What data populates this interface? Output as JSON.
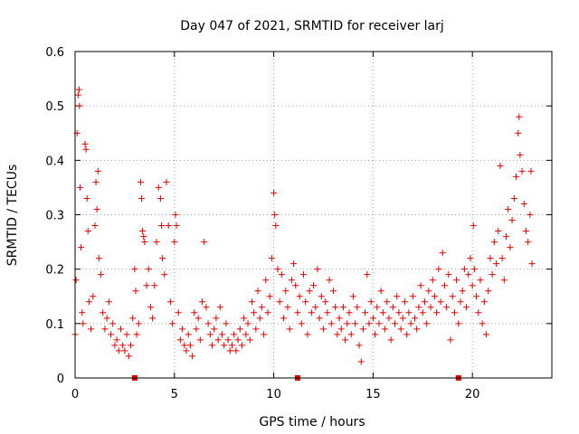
{
  "chart_data": {
    "type": "scatter",
    "title": "Day 047 of 2021, SRMTID for receiver larj",
    "xlabel": "GPS time / hours",
    "ylabel": "SRMTID / TECUs",
    "xlim": [
      0,
      24
    ],
    "ylim": [
      0,
      0.6
    ],
    "xticks": [
      0,
      5,
      10,
      15,
      20
    ],
    "xtick_labels": [
      "0",
      "5",
      "10",
      "15",
      "20"
    ],
    "yticks": [
      0,
      0.1,
      0.2,
      0.3,
      0.4,
      0.5,
      0.6
    ],
    "ytick_labels": [
      "0",
      "0.1",
      "0.2",
      "0.3",
      "0.4",
      "0.5",
      "0.6"
    ],
    "grid": true,
    "marker": "plus",
    "color": "#e00000",
    "axis_marks_x": [
      3.0,
      11.2,
      19.3
    ],
    "series": [
      {
        "name": "SRMTID",
        "points": [
          [
            0.0,
            0.08
          ],
          [
            0.05,
            0.18
          ],
          [
            0.1,
            0.45
          ],
          [
            0.15,
            0.52
          ],
          [
            0.2,
            0.53
          ],
          [
            0.22,
            0.5
          ],
          [
            0.25,
            0.35
          ],
          [
            0.3,
            0.24
          ],
          [
            0.35,
            0.12
          ],
          [
            0.4,
            0.1
          ],
          [
            0.5,
            0.43
          ],
          [
            0.55,
            0.42
          ],
          [
            0.6,
            0.33
          ],
          [
            0.65,
            0.27
          ],
          [
            0.7,
            0.14
          ],
          [
            0.8,
            0.09
          ],
          [
            0.9,
            0.15
          ],
          [
            1.0,
            0.28
          ],
          [
            1.05,
            0.36
          ],
          [
            1.1,
            0.31
          ],
          [
            1.15,
            0.38
          ],
          [
            1.2,
            0.22
          ],
          [
            1.3,
            0.19
          ],
          [
            1.4,
            0.12
          ],
          [
            1.5,
            0.09
          ],
          [
            1.6,
            0.11
          ],
          [
            1.7,
            0.14
          ],
          [
            1.8,
            0.08
          ],
          [
            1.9,
            0.1
          ],
          [
            2.0,
            0.06
          ],
          [
            2.1,
            0.07
          ],
          [
            2.2,
            0.05
          ],
          [
            2.3,
            0.09
          ],
          [
            2.4,
            0.06
          ],
          [
            2.5,
            0.05
          ],
          [
            2.6,
            0.08
          ],
          [
            2.7,
            0.04
          ],
          [
            2.8,
            0.06
          ],
          [
            2.9,
            0.11
          ],
          [
            3.0,
            0.2
          ],
          [
            3.05,
            0.16
          ],
          [
            3.1,
            0.08
          ],
          [
            3.2,
            0.1
          ],
          [
            3.3,
            0.36
          ],
          [
            3.35,
            0.33
          ],
          [
            3.4,
            0.27
          ],
          [
            3.45,
            0.26
          ],
          [
            3.5,
            0.25
          ],
          [
            3.6,
            0.17
          ],
          [
            3.7,
            0.2
          ],
          [
            3.8,
            0.13
          ],
          [
            3.9,
            0.11
          ],
          [
            4.0,
            0.17
          ],
          [
            4.1,
            0.25
          ],
          [
            4.2,
            0.35
          ],
          [
            4.3,
            0.33
          ],
          [
            4.35,
            0.28
          ],
          [
            4.4,
            0.22
          ],
          [
            4.5,
            0.19
          ],
          [
            4.6,
            0.36
          ],
          [
            4.7,
            0.28
          ],
          [
            4.8,
            0.14
          ],
          [
            4.9,
            0.1
          ],
          [
            5.0,
            0.25
          ],
          [
            5.05,
            0.3
          ],
          [
            5.1,
            0.28
          ],
          [
            5.2,
            0.12
          ],
          [
            5.3,
            0.07
          ],
          [
            5.4,
            0.09
          ],
          [
            5.5,
            0.06
          ],
          [
            5.6,
            0.05
          ],
          [
            5.7,
            0.08
          ],
          [
            5.8,
            0.06
          ],
          [
            5.9,
            0.04
          ],
          [
            6.0,
            0.12
          ],
          [
            6.1,
            0.09
          ],
          [
            6.2,
            0.11
          ],
          [
            6.3,
            0.07
          ],
          [
            6.4,
            0.14
          ],
          [
            6.5,
            0.25
          ],
          [
            6.6,
            0.13
          ],
          [
            6.7,
            0.1
          ],
          [
            6.8,
            0.08
          ],
          [
            6.9,
            0.06
          ],
          [
            7.0,
            0.09
          ],
          [
            7.1,
            0.11
          ],
          [
            7.2,
            0.07
          ],
          [
            7.3,
            0.13
          ],
          [
            7.4,
            0.08
          ],
          [
            7.5,
            0.06
          ],
          [
            7.6,
            0.1
          ],
          [
            7.7,
            0.07
          ],
          [
            7.8,
            0.05
          ],
          [
            7.9,
            0.06
          ],
          [
            8.0,
            0.08
          ],
          [
            8.1,
            0.05
          ],
          [
            8.2,
            0.07
          ],
          [
            8.3,
            0.09
          ],
          [
            8.4,
            0.06
          ],
          [
            8.5,
            0.11
          ],
          [
            8.6,
            0.08
          ],
          [
            8.7,
            0.1
          ],
          [
            8.8,
            0.07
          ],
          [
            8.9,
            0.14
          ],
          [
            9.0,
            0.12
          ],
          [
            9.1,
            0.09
          ],
          [
            9.2,
            0.16
          ],
          [
            9.3,
            0.11
          ],
          [
            9.4,
            0.13
          ],
          [
            9.5,
            0.08
          ],
          [
            9.6,
            0.18
          ],
          [
            9.7,
            0.12
          ],
          [
            9.8,
            0.15
          ],
          [
            9.9,
            0.22
          ],
          [
            10.0,
            0.34
          ],
          [
            10.05,
            0.3
          ],
          [
            10.1,
            0.28
          ],
          [
            10.2,
            0.2
          ],
          [
            10.3,
            0.14
          ],
          [
            10.4,
            0.19
          ],
          [
            10.5,
            0.11
          ],
          [
            10.6,
            0.16
          ],
          [
            10.7,
            0.13
          ],
          [
            10.8,
            0.09
          ],
          [
            10.9,
            0.18
          ],
          [
            11.0,
            0.21
          ],
          [
            11.1,
            0.17
          ],
          [
            11.2,
            0.12
          ],
          [
            11.3,
            0.15
          ],
          [
            11.4,
            0.1
          ],
          [
            11.5,
            0.19
          ],
          [
            11.6,
            0.14
          ],
          [
            11.7,
            0.08
          ],
          [
            11.8,
            0.16
          ],
          [
            11.9,
            0.12
          ],
          [
            12.0,
            0.17
          ],
          [
            12.1,
            0.13
          ],
          [
            12.2,
            0.2
          ],
          [
            12.3,
            0.11
          ],
          [
            12.4,
            0.15
          ],
          [
            12.5,
            0.09
          ],
          [
            12.6,
            0.14
          ],
          [
            12.7,
            0.12
          ],
          [
            12.8,
            0.18
          ],
          [
            12.9,
            0.1
          ],
          [
            13.0,
            0.16
          ],
          [
            13.1,
            0.13
          ],
          [
            13.2,
            0.08
          ],
          [
            13.3,
            0.11
          ],
          [
            13.4,
            0.09
          ],
          [
            13.5,
            0.13
          ],
          [
            13.6,
            0.07
          ],
          [
            13.7,
            0.1
          ],
          [
            13.8,
            0.12
          ],
          [
            13.9,
            0.08
          ],
          [
            14.0,
            0.15
          ],
          [
            14.1,
            0.1
          ],
          [
            14.2,
            0.13
          ],
          [
            14.3,
            0.06
          ],
          [
            14.4,
            0.03
          ],
          [
            14.5,
            0.09
          ],
          [
            14.6,
            0.12
          ],
          [
            14.7,
            0.19
          ],
          [
            14.8,
            0.1
          ],
          [
            14.9,
            0.14
          ],
          [
            15.0,
            0.11
          ],
          [
            15.1,
            0.08
          ],
          [
            15.2,
            0.13
          ],
          [
            15.3,
            0.1
          ],
          [
            15.4,
            0.16
          ],
          [
            15.5,
            0.12
          ],
          [
            15.6,
            0.09
          ],
          [
            15.7,
            0.14
          ],
          [
            15.8,
            0.11
          ],
          [
            15.9,
            0.07
          ],
          [
            16.0,
            0.13
          ],
          [
            16.1,
            0.1
          ],
          [
            16.2,
            0.15
          ],
          [
            16.3,
            0.12
          ],
          [
            16.4,
            0.09
          ],
          [
            16.5,
            0.11
          ],
          [
            16.6,
            0.14
          ],
          [
            16.7,
            0.08
          ],
          [
            16.8,
            0.12
          ],
          [
            16.9,
            0.1
          ],
          [
            17.0,
            0.15
          ],
          [
            17.1,
            0.11
          ],
          [
            17.2,
            0.09
          ],
          [
            17.3,
            0.13
          ],
          [
            17.4,
            0.17
          ],
          [
            17.5,
            0.12
          ],
          [
            17.6,
            0.14
          ],
          [
            17.7,
            0.1
          ],
          [
            17.8,
            0.16
          ],
          [
            17.9,
            0.13
          ],
          [
            18.0,
            0.18
          ],
          [
            18.1,
            0.15
          ],
          [
            18.2,
            0.12
          ],
          [
            18.3,
            0.2
          ],
          [
            18.4,
            0.14
          ],
          [
            18.5,
            0.23
          ],
          [
            18.6,
            0.17
          ],
          [
            18.7,
            0.13
          ],
          [
            18.8,
            0.19
          ],
          [
            18.9,
            0.07
          ],
          [
            19.0,
            0.15
          ],
          [
            19.1,
            0.12
          ],
          [
            19.2,
            0.18
          ],
          [
            19.3,
            0.1
          ],
          [
            19.4,
            0.14
          ],
          [
            19.5,
            0.16
          ],
          [
            19.6,
            0.2
          ],
          [
            19.7,
            0.13
          ],
          [
            19.8,
            0.19
          ],
          [
            19.9,
            0.22
          ],
          [
            20.0,
            0.17
          ],
          [
            20.05,
            0.28
          ],
          [
            20.1,
            0.2
          ],
          [
            20.2,
            0.15
          ],
          [
            20.3,
            0.12
          ],
          [
            20.4,
            0.18
          ],
          [
            20.5,
            0.1
          ],
          [
            20.6,
            0.14
          ],
          [
            20.7,
            0.08
          ],
          [
            20.8,
            0.16
          ],
          [
            20.9,
            0.22
          ],
          [
            21.0,
            0.19
          ],
          [
            21.1,
            0.25
          ],
          [
            21.2,
            0.21
          ],
          [
            21.3,
            0.27
          ],
          [
            21.4,
            0.39
          ],
          [
            21.5,
            0.22
          ],
          [
            21.6,
            0.18
          ],
          [
            21.7,
            0.26
          ],
          [
            21.8,
            0.31
          ],
          [
            21.9,
            0.24
          ],
          [
            22.0,
            0.29
          ],
          [
            22.1,
            0.33
          ],
          [
            22.2,
            0.37
          ],
          [
            22.3,
            0.45
          ],
          [
            22.35,
            0.48
          ],
          [
            22.4,
            0.41
          ],
          [
            22.5,
            0.38
          ],
          [
            22.6,
            0.32
          ],
          [
            22.7,
            0.27
          ],
          [
            22.8,
            0.25
          ],
          [
            22.9,
            0.3
          ],
          [
            22.95,
            0.38
          ],
          [
            23.0,
            0.21
          ]
        ]
      }
    ]
  }
}
